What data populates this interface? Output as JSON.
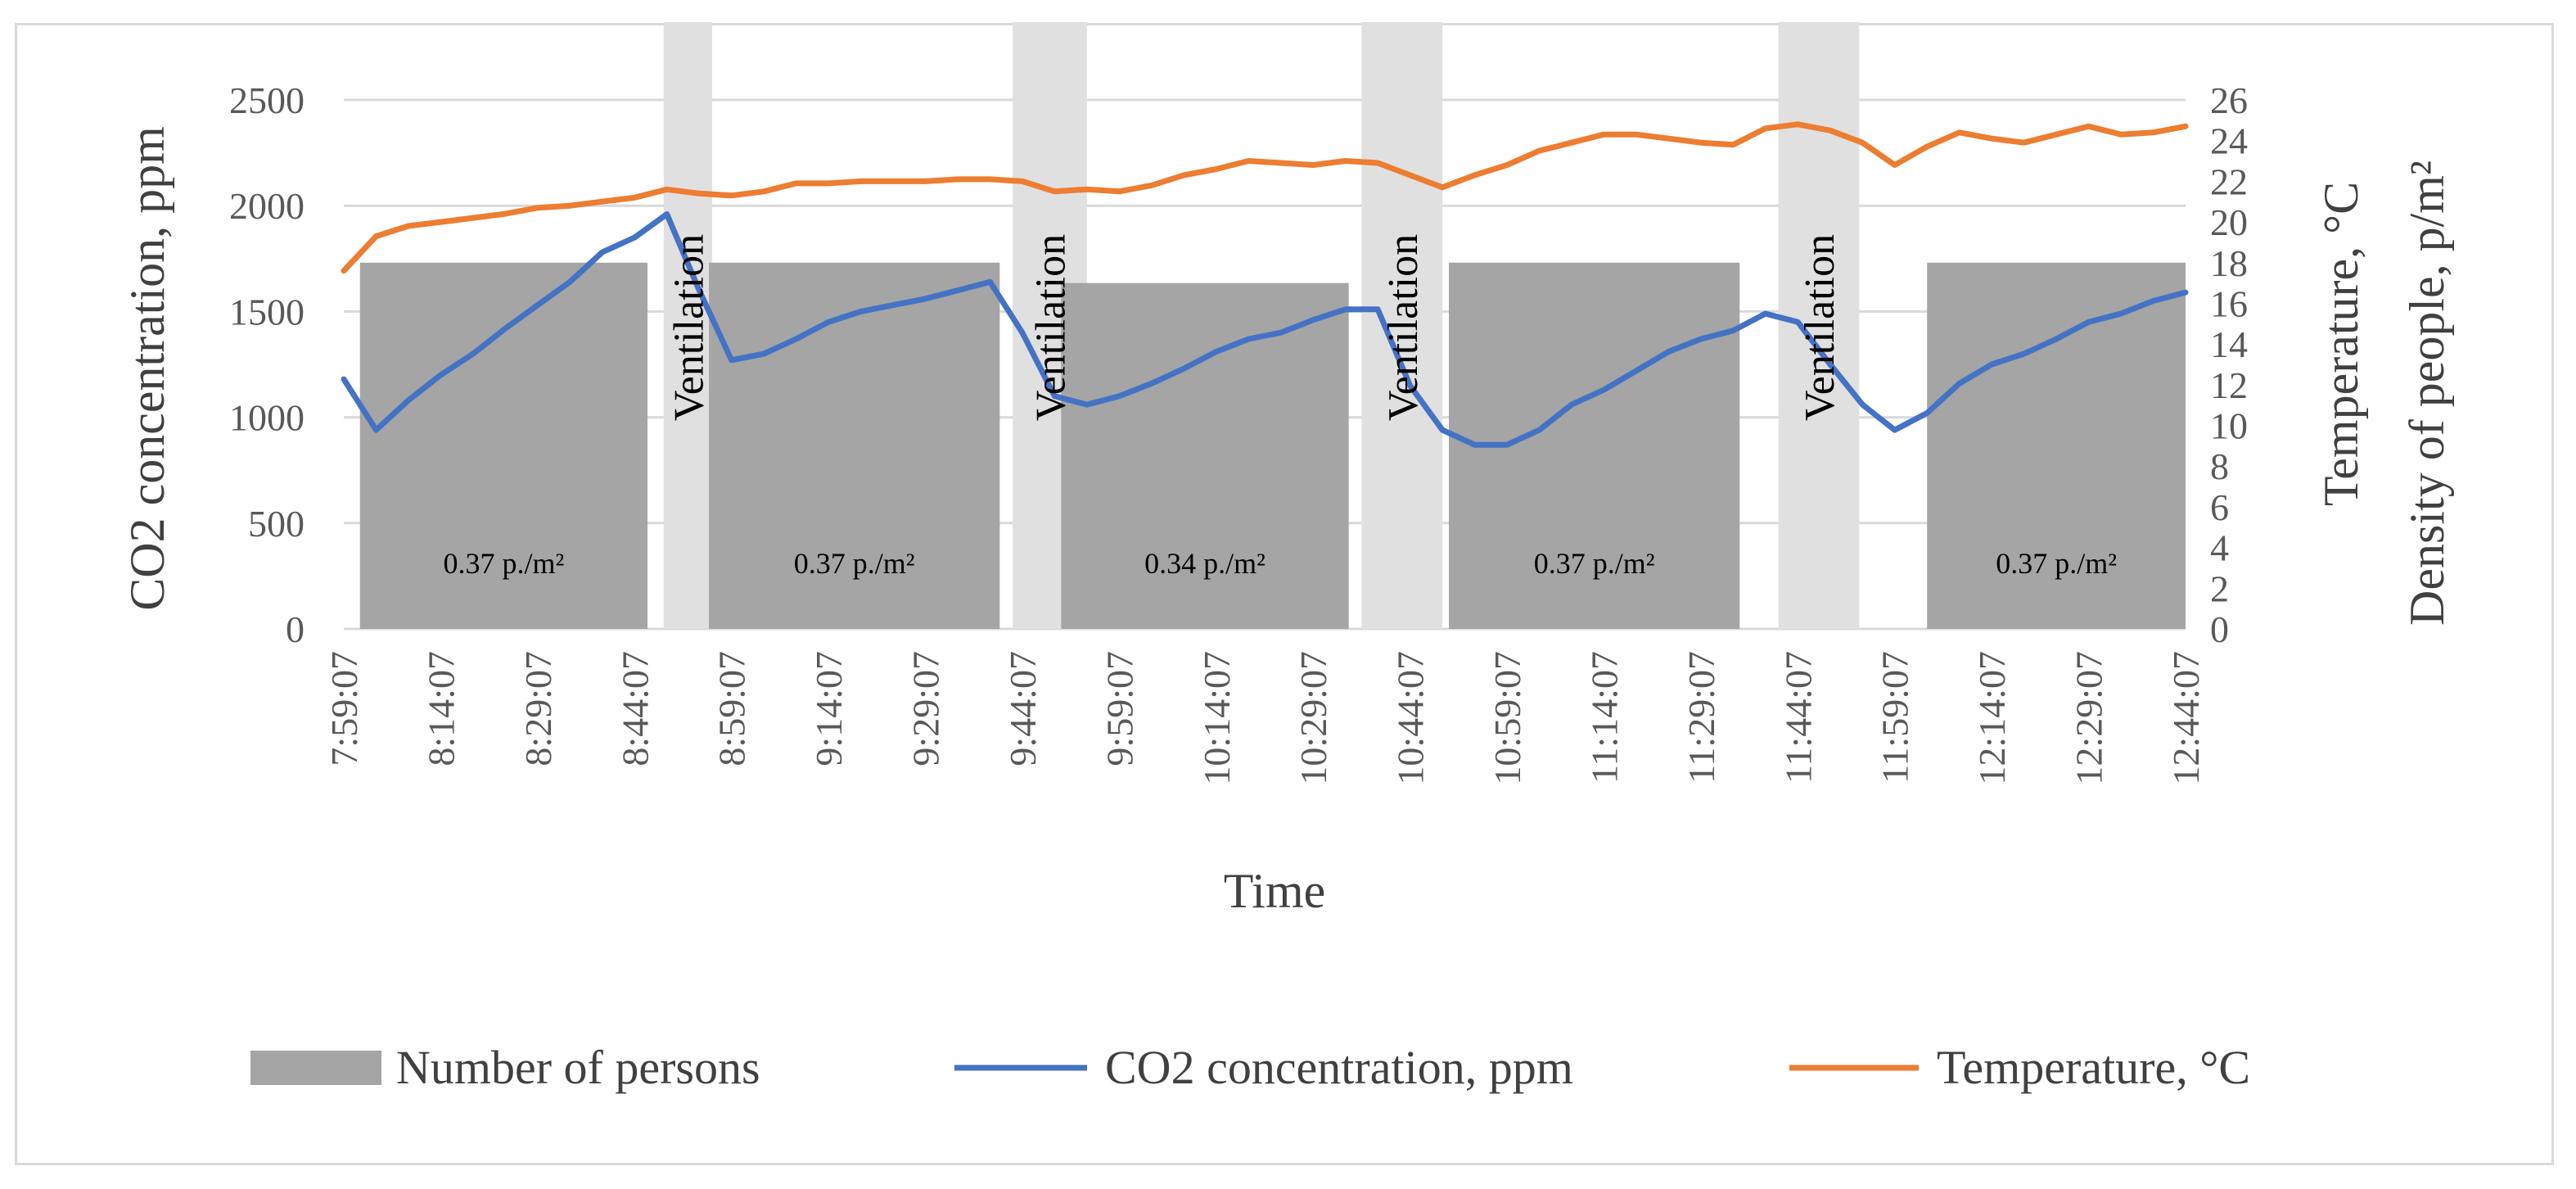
{
  "chart_data": {
    "type": "combo",
    "xlabel": "Time",
    "y_left_label": "CO2 concentration, ppm",
    "y_right_label_1": "Temperature, °C",
    "y_right_label_2": "Density of people, p/m²",
    "y_left_ticks": [
      "0",
      "500",
      "1000",
      "1500",
      "2000",
      "2500"
    ],
    "y_left_range": [
      0,
      2500
    ],
    "y_right_ticks": [
      "0",
      "2",
      "4",
      "6",
      "8",
      "10",
      "12",
      "14",
      "16",
      "18",
      "20",
      "22",
      "24",
      "26"
    ],
    "y_right_range": [
      0,
      26
    ],
    "x_range_minutes": [
      0,
      285
    ],
    "x_tick_minutes": [
      0,
      15,
      30,
      45,
      60,
      75,
      90,
      105,
      120,
      135,
      150,
      165,
      180,
      195,
      210,
      225,
      240,
      255,
      270,
      285
    ],
    "x_tick_labels": [
      "7:59:07",
      "8:14:07",
      "8:29:07",
      "8:44:07",
      "8:59:07",
      "9:14:07",
      "9:29:07",
      "9:44:07",
      "9:59:07",
      "10:14:07",
      "10:29:07",
      "10:44:07",
      "10:59:07",
      "11:14:07",
      "11:29:07",
      "11:44:07",
      "11:59:07",
      "12:14:07",
      "12:29:07",
      "12:44:07"
    ],
    "ventilation_periods": [
      {
        "start": 49.5,
        "end": 57,
        "label": "Ventilation"
      },
      {
        "start": 103.5,
        "end": 115,
        "label": "Ventilation"
      },
      {
        "start": 157.5,
        "end": 170,
        "label": "Ventilation"
      },
      {
        "start": 222,
        "end": 234.5,
        "label": "Ventilation"
      }
    ],
    "occupancy_periods": [
      {
        "start": 2.5,
        "end": 47,
        "value": 18,
        "label": "0.37 p./m²"
      },
      {
        "start": 56.5,
        "end": 101.5,
        "value": 18,
        "label": "0.37 p./m²"
      },
      {
        "start": 111,
        "end": 155.5,
        "value": 17,
        "label": "0.34 p./m²"
      },
      {
        "start": 171,
        "end": 216,
        "value": 18,
        "label": "0.37 p./m²"
      },
      {
        "start": 245,
        "end": 285,
        "value": 18,
        "label": "0.37 p./m²"
      }
    ],
    "series": [
      {
        "name": "CO2 concentration, ppm",
        "axis": "left",
        "color": "#4472C4",
        "x": [
          0,
          5,
          10,
          15,
          20,
          25,
          30,
          35,
          40,
          45,
          50,
          55,
          60,
          65,
          70,
          75,
          80,
          85,
          90,
          95,
          100,
          105,
          110,
          115,
          120,
          125,
          130,
          135,
          140,
          145,
          150,
          155,
          160,
          165,
          170,
          175,
          180,
          185,
          190,
          195,
          200,
          205,
          210,
          215,
          220,
          225,
          230,
          235,
          240,
          245,
          250,
          255,
          260,
          265,
          270,
          275,
          280,
          285
        ],
        "values": [
          1180,
          940,
          1080,
          1200,
          1300,
          1420,
          1530,
          1640,
          1780,
          1850,
          1960,
          1600,
          1270,
          1300,
          1370,
          1450,
          1500,
          1530,
          1560,
          1600,
          1640,
          1400,
          1100,
          1060,
          1100,
          1160,
          1230,
          1310,
          1370,
          1400,
          1460,
          1510,
          1510,
          1150,
          940,
          870,
          870,
          940,
          1060,
          1130,
          1220,
          1310,
          1370,
          1410,
          1490,
          1450,
          1250,
          1060,
          940,
          1020,
          1160,
          1250,
          1300,
          1370,
          1450,
          1490,
          1550,
          1590
        ]
      },
      {
        "name": "Temperature, °C",
        "axis": "right",
        "color": "#ED7D31",
        "x": [
          0,
          5,
          10,
          15,
          20,
          25,
          30,
          35,
          40,
          45,
          50,
          55,
          60,
          65,
          70,
          75,
          80,
          85,
          90,
          95,
          100,
          105,
          110,
          115,
          120,
          125,
          130,
          135,
          140,
          145,
          150,
          155,
          160,
          165,
          170,
          175,
          180,
          185,
          190,
          195,
          200,
          205,
          210,
          215,
          220,
          225,
          230,
          235,
          240,
          245,
          250,
          255,
          260,
          265,
          270,
          275,
          280,
          285
        ],
        "values": [
          17.6,
          19.3,
          19.8,
          20.0,
          20.2,
          20.4,
          20.7,
          20.8,
          21.0,
          21.2,
          21.6,
          21.4,
          21.3,
          21.5,
          21.9,
          21.9,
          22.0,
          22.0,
          22.0,
          22.1,
          22.1,
          22.0,
          21.5,
          21.6,
          21.5,
          21.8,
          22.3,
          22.6,
          23.0,
          22.9,
          22.8,
          23.0,
          22.9,
          22.3,
          21.7,
          22.3,
          22.8,
          23.5,
          23.9,
          24.3,
          24.3,
          24.1,
          23.9,
          23.8,
          24.6,
          24.8,
          24.5,
          23.9,
          22.8,
          23.7,
          24.4,
          24.1,
          23.9,
          24.3,
          24.7,
          24.3,
          24.4,
          24.7
        ]
      },
      {
        "name": "Number of persons",
        "axis": "right",
        "color": "#A5A5A5",
        "kind": "bar"
      }
    ],
    "legend": {
      "position": "bottom",
      "items": [
        {
          "label": "Number of persons",
          "symbol": "box",
          "color": "#A5A5A5"
        },
        {
          "label": "CO2 concentration, ppm",
          "symbol": "line",
          "color": "#4472C4"
        },
        {
          "label": "Temperature, °C",
          "symbol": "line",
          "color": "#ED7D31"
        }
      ]
    }
  }
}
